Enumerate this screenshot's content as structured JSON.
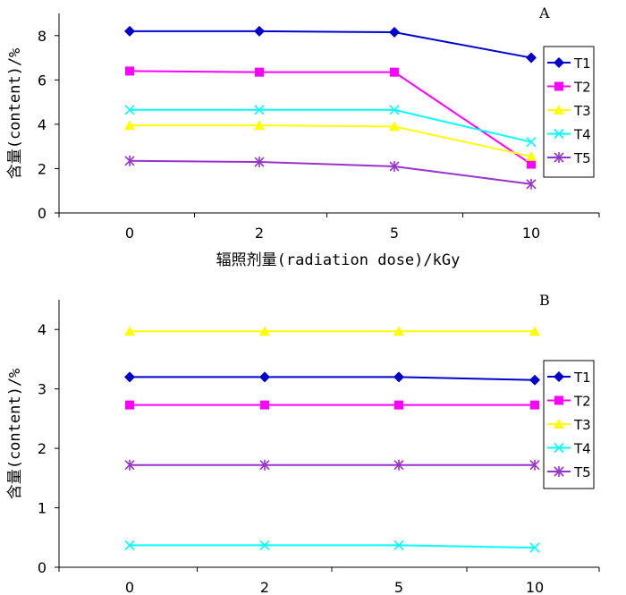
{
  "chart_data": [
    {
      "type": "line",
      "panel_label": "A",
      "categories": [
        "0",
        "2",
        "5",
        "10"
      ],
      "xlabel": "辐照剂量(radiation dose)/kGy",
      "ylabel": "含量(content)/%",
      "ylim": [
        0,
        9
      ],
      "yticks": [
        "0",
        "2",
        "4",
        "6",
        "8"
      ],
      "ytick_values": [
        0,
        2,
        4,
        6,
        8
      ],
      "legend_position": "right",
      "series": [
        {
          "name": "T1",
          "values": [
            8.2,
            8.2,
            8.15,
            7.0
          ],
          "color": "#0000cc",
          "marker": "diamond"
        },
        {
          "name": "T2",
          "values": [
            6.4,
            6.35,
            6.35,
            2.2
          ],
          "color": "#ff00ff",
          "marker": "square"
        },
        {
          "name": "T3",
          "values": [
            3.95,
            3.95,
            3.9,
            2.55
          ],
          "color": "#ffff00",
          "marker": "triangle"
        },
        {
          "name": "T4",
          "values": [
            4.65,
            4.65,
            4.65,
            3.2
          ],
          "color": "#00ffff",
          "marker": "x"
        },
        {
          "name": "T5",
          "values": [
            2.35,
            2.3,
            2.1,
            1.3
          ],
          "color": "#9933cc",
          "marker": "star"
        }
      ]
    },
    {
      "type": "line",
      "panel_label": "B",
      "categories": [
        "0",
        "2",
        "5",
        "10"
      ],
      "xlabel": "辐照剂量(radiation dose)/kGy",
      "ylabel": "含量(content)/%",
      "ylim": [
        0,
        4.5
      ],
      "yticks": [
        "0",
        "1",
        "2",
        "3",
        "4"
      ],
      "ytick_values": [
        0,
        1,
        2,
        3,
        4
      ],
      "legend_position": "right",
      "series": [
        {
          "name": "T1",
          "values": [
            3.2,
            3.2,
            3.2,
            3.15
          ],
          "color": "#0000cc",
          "marker": "diamond"
        },
        {
          "name": "T2",
          "values": [
            2.73,
            2.73,
            2.73,
            2.73
          ],
          "color": "#ff00ff",
          "marker": "square"
        },
        {
          "name": "T3",
          "values": [
            3.97,
            3.97,
            3.97,
            3.97
          ],
          "color": "#ffff00",
          "marker": "triangle"
        },
        {
          "name": "T4",
          "values": [
            0.37,
            0.37,
            0.37,
            0.33
          ],
          "color": "#00ffff",
          "marker": "x"
        },
        {
          "name": "T5",
          "values": [
            1.72,
            1.72,
            1.72,
            1.72
          ],
          "color": "#9933cc",
          "marker": "star"
        }
      ]
    }
  ]
}
